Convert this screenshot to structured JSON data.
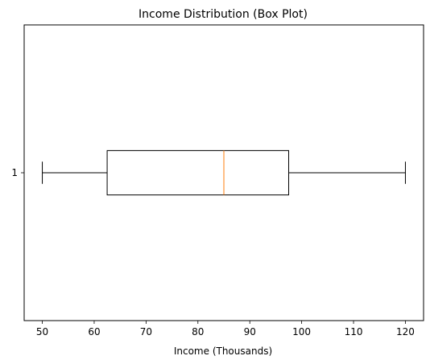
{
  "chart_data": {
    "type": "boxplot",
    "orientation": "horizontal",
    "title": "Income Distribution (Box Plot)",
    "xlabel": "Income (Thousands)",
    "ylabel": "",
    "xlim": [
      46.5,
      123.5
    ],
    "xticks": [
      50,
      60,
      70,
      80,
      90,
      100,
      110,
      120
    ],
    "categories": [
      "1"
    ],
    "boxes": [
      {
        "label": "1",
        "whisker_low": 50,
        "q1": 62.5,
        "median": 85,
        "q3": 97.5,
        "whisker_high": 120
      }
    ],
    "colors": {
      "box": "#000000",
      "median": "#ff7f0e"
    },
    "grid": false,
    "legend": "none"
  }
}
